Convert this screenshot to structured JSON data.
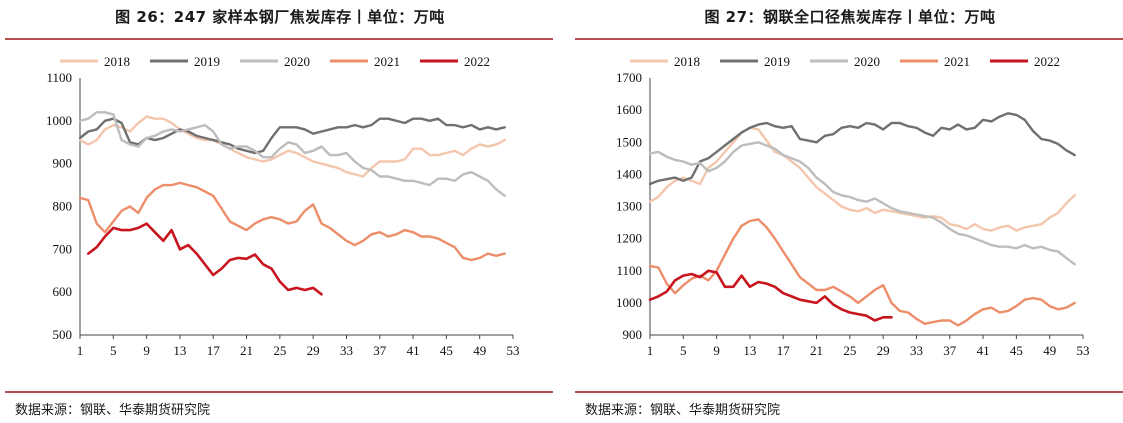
{
  "source_text": "数据来源：钢联、华泰期货研究院",
  "colors": {
    "2018": "#f4c6ae",
    "2019": "#707070",
    "2020": "#bdbdbd",
    "2021": "#ee8d6a",
    "2022": "#c8141e",
    "rule": "#b5514f"
  },
  "chart_data": [
    {
      "type": "line",
      "title": "图 26：247 家样本钢厂焦炭库存丨单位：万吨",
      "xlabel": "",
      "ylabel": "",
      "x_ticks": [
        1,
        5,
        9,
        13,
        17,
        21,
        25,
        29,
        33,
        37,
        41,
        45,
        49,
        53
      ],
      "y_ticks": [
        500,
        600,
        700,
        800,
        900,
        1000,
        1100
      ],
      "xlim": [
        1,
        53
      ],
      "ylim": [
        500,
        1100
      ],
      "legend": "top",
      "series": [
        {
          "name": "2018",
          "color": "#f4c6ae",
          "x": [
            1,
            2,
            3,
            4,
            5,
            6,
            7,
            8,
            9,
            10,
            11,
            12,
            13,
            14,
            15,
            16,
            17,
            18,
            19,
            20,
            21,
            22,
            23,
            24,
            25,
            26,
            27,
            28,
            29,
            30,
            31,
            32,
            33,
            34,
            35,
            36,
            37,
            38,
            39,
            40,
            41,
            42,
            43,
            44,
            45,
            46,
            47,
            48,
            49,
            50,
            51,
            52
          ],
          "values": [
            955,
            945,
            955,
            980,
            990,
            985,
            975,
            995,
            1010,
            1005,
            1005,
            995,
            980,
            970,
            960,
            955,
            955,
            945,
            935,
            925,
            915,
            910,
            905,
            910,
            920,
            930,
            925,
            915,
            905,
            900,
            895,
            890,
            880,
            875,
            870,
            890,
            905,
            905,
            905,
            910,
            935,
            935,
            920,
            920,
            925,
            930,
            920,
            935,
            945,
            940,
            945,
            955
          ]
        },
        {
          "name": "2019",
          "color": "#707070",
          "x": [
            1,
            2,
            3,
            4,
            5,
            6,
            7,
            8,
            9,
            10,
            11,
            12,
            13,
            14,
            15,
            16,
            17,
            18,
            19,
            20,
            21,
            22,
            23,
            24,
            25,
            26,
            27,
            28,
            29,
            30,
            31,
            32,
            33,
            34,
            35,
            36,
            37,
            38,
            39,
            40,
            41,
            42,
            43,
            44,
            45,
            46,
            47,
            48,
            49,
            50,
            51,
            52
          ],
          "values": [
            960,
            975,
            980,
            1000,
            1005,
            995,
            950,
            945,
            960,
            955,
            960,
            970,
            980,
            975,
            965,
            960,
            955,
            950,
            945,
            935,
            930,
            925,
            930,
            960,
            985,
            985,
            985,
            980,
            970,
            975,
            980,
            985,
            985,
            990,
            985,
            990,
            1005,
            1005,
            1000,
            995,
            1005,
            1005,
            1000,
            1005,
            990,
            990,
            985,
            990,
            980,
            985,
            980,
            985
          ]
        },
        {
          "name": "2020",
          "color": "#bdbdbd",
          "x": [
            1,
            2,
            3,
            4,
            5,
            6,
            7,
            8,
            9,
            10,
            11,
            12,
            13,
            14,
            15,
            16,
            17,
            18,
            19,
            20,
            21,
            22,
            23,
            24,
            25,
            26,
            27,
            28,
            29,
            30,
            31,
            32,
            33,
            34,
            35,
            36,
            37,
            38,
            39,
            40,
            41,
            42,
            43,
            44,
            45,
            46,
            47,
            48,
            49,
            50,
            51,
            52
          ],
          "values": [
            1000,
            1005,
            1020,
            1020,
            1015,
            955,
            945,
            940,
            960,
            965,
            975,
            980,
            975,
            980,
            985,
            990,
            975,
            945,
            935,
            940,
            940,
            930,
            915,
            915,
            935,
            950,
            945,
            925,
            930,
            940,
            920,
            920,
            925,
            905,
            890,
            885,
            870,
            870,
            865,
            860,
            860,
            855,
            850,
            865,
            865,
            860,
            875,
            880,
            870,
            860,
            840,
            825
          ]
        },
        {
          "name": "2021",
          "color": "#ee8d6a",
          "x": [
            1,
            2,
            3,
            4,
            5,
            6,
            7,
            8,
            9,
            10,
            11,
            12,
            13,
            14,
            15,
            16,
            17,
            18,
            19,
            20,
            21,
            22,
            23,
            24,
            25,
            26,
            27,
            28,
            29,
            30,
            31,
            32,
            33,
            34,
            35,
            36,
            37,
            38,
            39,
            40,
            41,
            42,
            43,
            44,
            45,
            46,
            47,
            48,
            49,
            50,
            51,
            52
          ],
          "values": [
            820,
            815,
            760,
            740,
            765,
            790,
            800,
            785,
            820,
            840,
            850,
            850,
            855,
            850,
            845,
            835,
            825,
            795,
            765,
            755,
            745,
            760,
            770,
            775,
            770,
            760,
            765,
            790,
            805,
            760,
            750,
            735,
            720,
            710,
            720,
            735,
            740,
            730,
            735,
            745,
            740,
            730,
            730,
            725,
            715,
            705,
            680,
            675,
            680,
            690,
            685,
            690
          ]
        },
        {
          "name": "2022",
          "color": "#c8141e",
          "x": [
            2,
            3,
            4,
            5,
            6,
            7,
            8,
            9,
            10,
            11,
            12,
            13,
            14,
            15,
            16,
            17,
            18,
            19,
            20,
            21,
            22,
            23,
            24,
            25,
            26,
            27,
            28,
            29,
            30
          ],
          "values": [
            690,
            705,
            730,
            750,
            745,
            745,
            750,
            760,
            740,
            720,
            745,
            700,
            710,
            690,
            665,
            640,
            655,
            675,
            680,
            678,
            688,
            665,
            655,
            625,
            605,
            610,
            605,
            610,
            595
          ]
        }
      ]
    },
    {
      "type": "line",
      "title": "图 27：钢联全口径焦炭库存丨单位：万吨",
      "xlabel": "",
      "ylabel": "",
      "x_ticks": [
        1,
        5,
        9,
        13,
        17,
        21,
        25,
        29,
        33,
        37,
        41,
        45,
        49,
        53
      ],
      "y_ticks": [
        900,
        1000,
        1100,
        1200,
        1300,
        1400,
        1500,
        1600,
        1700
      ],
      "xlim": [
        1,
        53
      ],
      "ylim": [
        900,
        1700
      ],
      "legend": "top",
      "series": [
        {
          "name": "2018",
          "color": "#f4c6ae",
          "x": [
            1,
            2,
            3,
            4,
            5,
            6,
            7,
            8,
            9,
            10,
            11,
            12,
            13,
            14,
            15,
            16,
            17,
            18,
            19,
            20,
            21,
            22,
            23,
            24,
            25,
            26,
            27,
            28,
            29,
            30,
            31,
            32,
            33,
            34,
            35,
            36,
            37,
            38,
            39,
            40,
            41,
            42,
            43,
            44,
            45,
            46,
            47,
            48,
            49,
            50,
            51,
            52
          ],
          "values": [
            1315,
            1330,
            1360,
            1380,
            1390,
            1380,
            1370,
            1420,
            1440,
            1470,
            1500,
            1530,
            1545,
            1540,
            1505,
            1470,
            1460,
            1440,
            1420,
            1390,
            1360,
            1340,
            1320,
            1300,
            1290,
            1285,
            1295,
            1280,
            1290,
            1285,
            1280,
            1275,
            1270,
            1265,
            1270,
            1265,
            1245,
            1240,
            1230,
            1245,
            1230,
            1225,
            1235,
            1240,
            1225,
            1235,
            1240,
            1245,
            1265,
            1280,
            1310,
            1335
          ]
        },
        {
          "name": "2019",
          "color": "#707070",
          "x": [
            1,
            2,
            3,
            4,
            5,
            6,
            7,
            8,
            9,
            10,
            11,
            12,
            13,
            14,
            15,
            16,
            17,
            18,
            19,
            20,
            21,
            22,
            23,
            24,
            25,
            26,
            27,
            28,
            29,
            30,
            31,
            32,
            33,
            34,
            35,
            36,
            37,
            38,
            39,
            40,
            41,
            42,
            43,
            44,
            45,
            46,
            47,
            48,
            49,
            50,
            51,
            52
          ],
          "values": [
            1370,
            1380,
            1385,
            1390,
            1380,
            1390,
            1440,
            1450,
            1470,
            1490,
            1510,
            1530,
            1545,
            1555,
            1560,
            1550,
            1545,
            1550,
            1510,
            1505,
            1500,
            1520,
            1525,
            1545,
            1550,
            1545,
            1560,
            1555,
            1540,
            1560,
            1560,
            1550,
            1545,
            1530,
            1520,
            1545,
            1540,
            1555,
            1540,
            1545,
            1570,
            1565,
            1580,
            1590,
            1585,
            1570,
            1535,
            1510,
            1505,
            1495,
            1475,
            1460
          ]
        },
        {
          "name": "2020",
          "color": "#bdbdbd",
          "x": [
            1,
            2,
            3,
            4,
            5,
            6,
            7,
            8,
            9,
            10,
            11,
            12,
            13,
            14,
            15,
            16,
            17,
            18,
            19,
            20,
            21,
            22,
            23,
            24,
            25,
            26,
            27,
            28,
            29,
            30,
            31,
            32,
            33,
            34,
            35,
            36,
            37,
            38,
            39,
            40,
            41,
            42,
            43,
            44,
            45,
            46,
            47,
            48,
            49,
            50,
            51,
            52
          ],
          "values": [
            1465,
            1470,
            1455,
            1445,
            1440,
            1430,
            1435,
            1410,
            1420,
            1440,
            1470,
            1490,
            1495,
            1500,
            1490,
            1480,
            1460,
            1450,
            1440,
            1420,
            1390,
            1370,
            1345,
            1335,
            1330,
            1320,
            1315,
            1325,
            1310,
            1295,
            1285,
            1280,
            1275,
            1270,
            1265,
            1250,
            1230,
            1215,
            1210,
            1200,
            1190,
            1180,
            1175,
            1175,
            1170,
            1180,
            1170,
            1175,
            1165,
            1160,
            1140,
            1120
          ]
        },
        {
          "name": "2021",
          "color": "#ee8d6a",
          "x": [
            1,
            2,
            3,
            4,
            5,
            6,
            7,
            8,
            9,
            10,
            11,
            12,
            13,
            14,
            15,
            16,
            17,
            18,
            19,
            20,
            21,
            22,
            23,
            24,
            25,
            26,
            27,
            28,
            29,
            30,
            31,
            32,
            33,
            34,
            35,
            36,
            37,
            38,
            39,
            40,
            41,
            42,
            43,
            44,
            45,
            46,
            47,
            48,
            49,
            50,
            51,
            52
          ],
          "values": [
            1115,
            1110,
            1060,
            1030,
            1055,
            1075,
            1085,
            1070,
            1100,
            1150,
            1200,
            1240,
            1255,
            1260,
            1235,
            1200,
            1160,
            1120,
            1080,
            1060,
            1040,
            1040,
            1050,
            1035,
            1020,
            1000,
            1020,
            1040,
            1055,
            1000,
            975,
            970,
            950,
            935,
            940,
            945,
            945,
            930,
            945,
            965,
            980,
            985,
            970,
            975,
            990,
            1010,
            1015,
            1010,
            990,
            980,
            985,
            1000
          ]
        },
        {
          "name": "2022",
          "color": "#c8141e",
          "x": [
            1,
            2,
            3,
            4,
            5,
            6,
            7,
            8,
            9,
            10,
            11,
            12,
            13,
            14,
            15,
            16,
            17,
            18,
            19,
            20,
            21,
            22,
            23,
            24,
            25,
            26,
            27,
            28,
            29,
            30
          ],
          "values": [
            1010,
            1020,
            1035,
            1070,
            1085,
            1090,
            1080,
            1100,
            1095,
            1050,
            1050,
            1085,
            1050,
            1065,
            1060,
            1050,
            1030,
            1020,
            1010,
            1005,
            1000,
            1020,
            995,
            980,
            970,
            965,
            960,
            945,
            955,
            955
          ]
        }
      ]
    }
  ]
}
